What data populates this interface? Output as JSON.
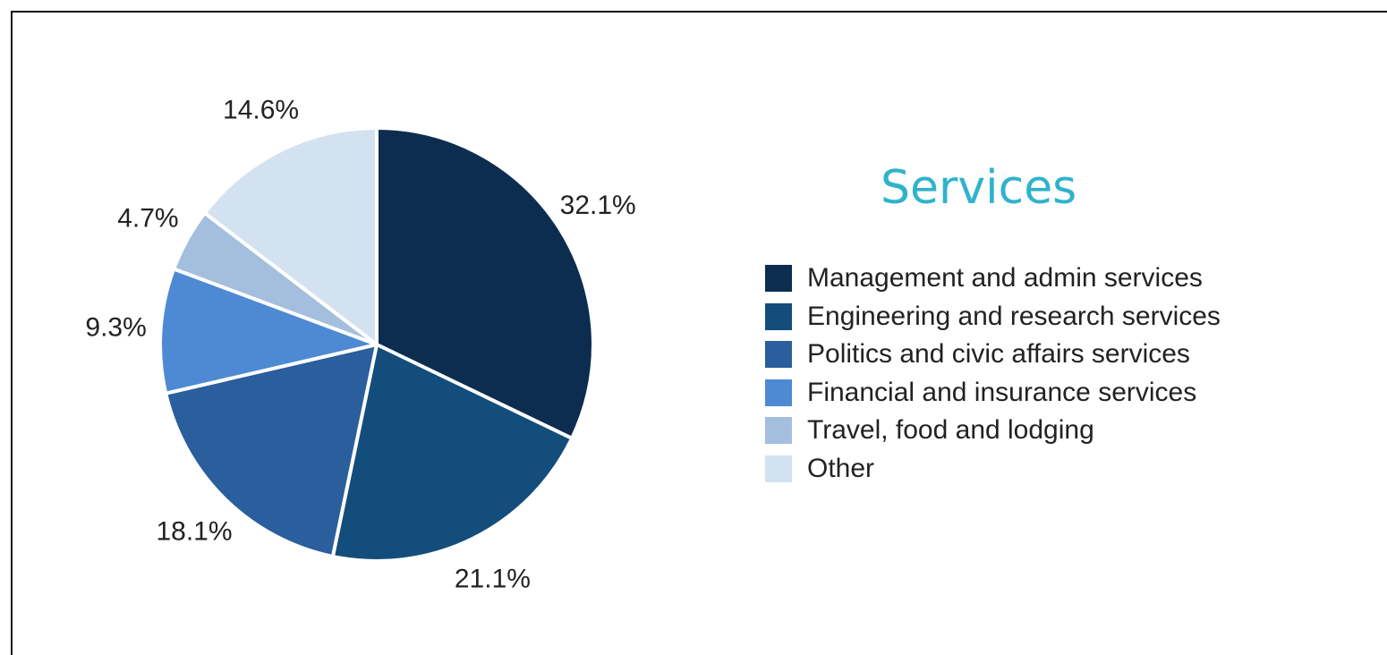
{
  "chart_data": {
    "type": "pie",
    "title": "Services",
    "categories": [
      "Management and admin services",
      "Engineering and research services",
      "Politics and civic affairs services",
      "Financial and insurance services",
      "Travel, food and lodging",
      "Other"
    ],
    "values": [
      32.1,
      21.1,
      18.1,
      9.3,
      4.7,
      14.6
    ],
    "labels": [
      "32.1%",
      "21.1%",
      "18.1%",
      "9.3%",
      "4.7%",
      "14.6%"
    ],
    "colors": [
      "#0c2d4f",
      "#134d7b",
      "#2a5e9c",
      "#4d8ad3",
      "#a3bfdd",
      "#d3e2f1"
    ],
    "legend_position": "right",
    "start_angle": "12 o'clock, clockwise"
  }
}
